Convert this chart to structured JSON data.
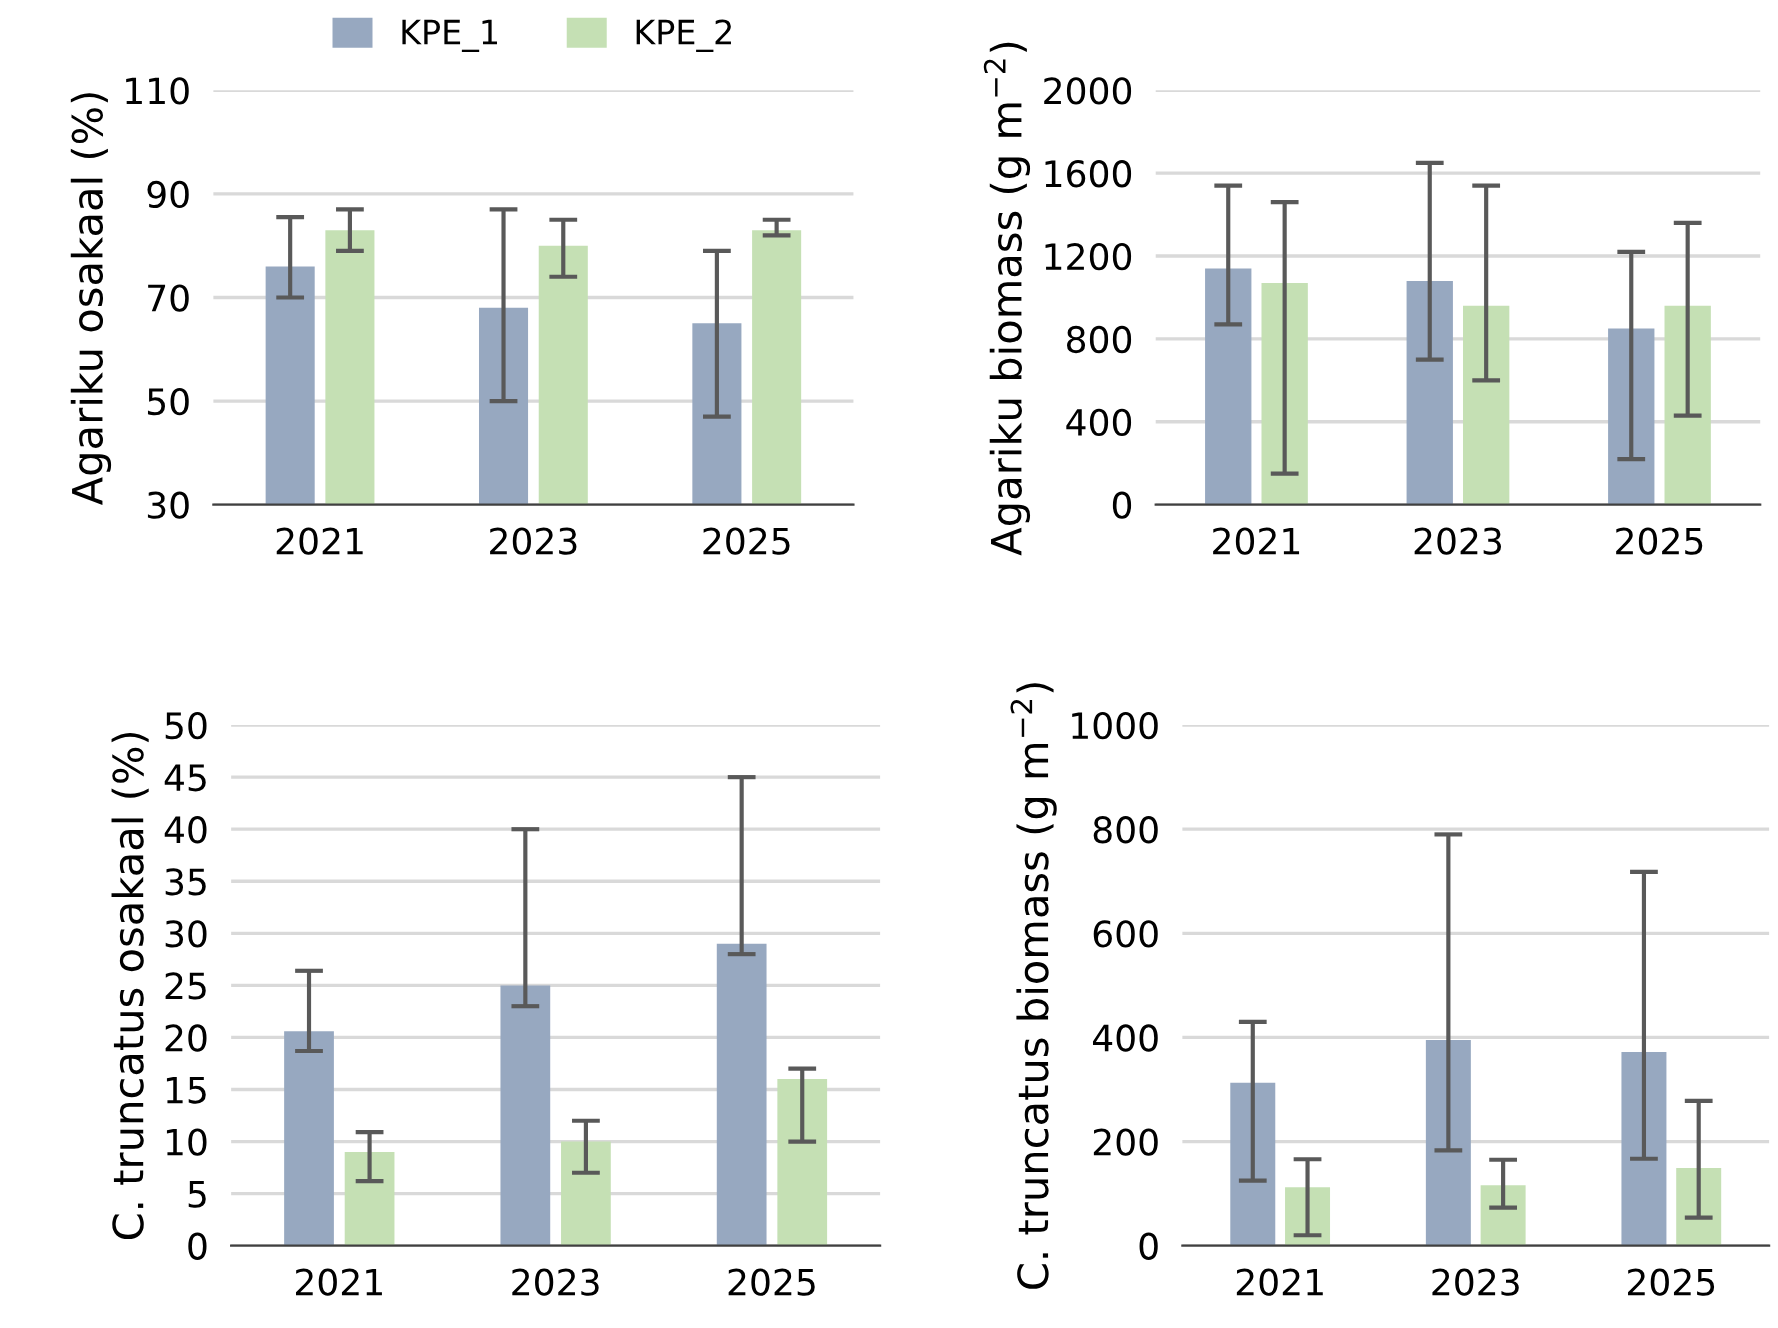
{
  "chart_data": [
    {
      "type": "bar",
      "ylabel": "Agariku osakaal (%)",
      "categories": [
        "2021",
        "2023",
        "2025"
      ],
      "ylim": [
        30,
        110
      ],
      "yticks": [
        30,
        50,
        70,
        90,
        110
      ],
      "grid": "y",
      "legend": "top",
      "series": [
        {
          "name": "KPE_1",
          "color": "#97a8c0",
          "values": [
            76,
            68,
            65
          ],
          "errors": [
            [
              70,
              85.5
            ],
            [
              50,
              87
            ],
            [
              47,
              79
            ]
          ]
        },
        {
          "name": "KPE_2",
          "color": "#c5e0b4",
          "values": [
            83,
            80,
            83
          ],
          "errors": [
            [
              79,
              87
            ],
            [
              74,
              85
            ],
            [
              82,
              85
            ]
          ]
        }
      ]
    },
    {
      "type": "bar",
      "ylabel": "Agariku biomass (g m$^{−2}$)",
      "categories": [
        "2021",
        "2023",
        "2025"
      ],
      "ylim": [
        0,
        2000
      ],
      "yticks": [
        0,
        400,
        800,
        1200,
        1600,
        2000
      ],
      "grid": "y",
      "series": [
        {
          "color": "#97a8c0",
          "values": [
            1140,
            1080,
            850
          ],
          "errors": [
            [
              870,
              1540
            ],
            [
              700,
              1650
            ],
            [
              220,
              1220
            ]
          ]
        },
        {
          "color": "#c5e0b4",
          "values": [
            1070,
            960,
            960
          ],
          "errors": [
            [
              150,
              1460
            ],
            [
              600,
              1540
            ],
            [
              430,
              1360
            ]
          ]
        }
      ]
    },
    {
      "type": "bar",
      "ylabel": "C. truncatus osakaal (%)",
      "categories": [
        "2021",
        "2023",
        "2025"
      ],
      "ylim": [
        0,
        50
      ],
      "yticks": [
        0,
        5,
        10,
        15,
        20,
        25,
        30,
        35,
        40,
        45,
        50
      ],
      "grid": "y",
      "series": [
        {
          "color": "#97a8c0",
          "values": [
            20.6,
            25,
            29
          ],
          "errors": [
            [
              18.7,
              26.4
            ],
            [
              23,
              40
            ],
            [
              28,
              45
            ]
          ]
        },
        {
          "color": "#c5e0b4",
          "values": [
            9,
            10,
            16
          ],
          "errors": [
            [
              6.2,
              10.9
            ],
            [
              7,
              12
            ],
            [
              10,
              17
            ]
          ]
        }
      ]
    },
    {
      "type": "bar",
      "ylabel": "C. truncatus biomass (g m$^{−2}$)",
      "categories": [
        "2021",
        "2023",
        "2025"
      ],
      "ylim": [
        0,
        1000
      ],
      "yticks": [
        0,
        200,
        400,
        600,
        800,
        1000
      ],
      "grid": "y",
      "series": [
        {
          "color": "#97a8c0",
          "values": [
            313,
            395,
            372
          ],
          "errors": [
            [
              125,
              430
            ],
            [
              183,
              790
            ],
            [
              167,
              718
            ]
          ]
        },
        {
          "color": "#c5e0b4",
          "values": [
            112,
            116,
            149
          ],
          "errors": [
            [
              20,
              166
            ],
            [
              73,
              165
            ],
            [
              54,
              278
            ]
          ]
        }
      ]
    }
  ]
}
